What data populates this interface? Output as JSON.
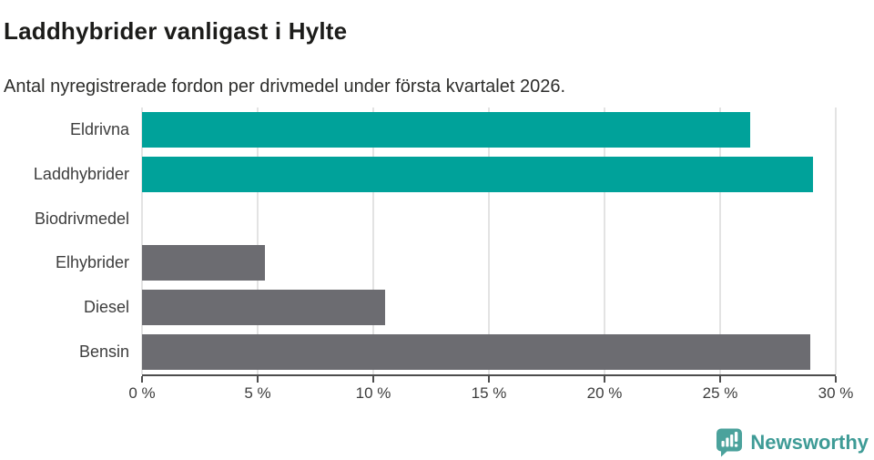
{
  "header": {
    "title": "Laddhybrider vanligast i Hylte",
    "subtitle": "Antal nyregistrerade fordon per drivmedel under första kvartalet 2026."
  },
  "chart_data": {
    "type": "bar",
    "orientation": "horizontal",
    "title": "Laddhybrider vanligast i Hylte",
    "subtitle": "Antal nyregistrerade fordon per drivmedel under första kvartalet 2026.",
    "categories": [
      "Eldrivna",
      "Laddhybrider",
      "Biodrivmedel",
      "Elhybrider",
      "Diesel",
      "Bensin"
    ],
    "values": [
      26.3,
      29,
      0,
      5.3,
      10.5,
      28.9
    ],
    "unit": "%",
    "bar_colors": [
      "#00a29a",
      "#00a29a",
      "#6c6c71",
      "#6c6c71",
      "#6c6c71",
      "#6c6c71"
    ],
    "xlabel": "",
    "ylabel": "",
    "xlim": [
      0,
      30
    ],
    "xticks": [
      0,
      5,
      10,
      15,
      20,
      25,
      30
    ],
    "xtick_suffix": " %",
    "grid": true,
    "legend": "none"
  },
  "colors": {
    "highlight": "#00a29a",
    "muted": "#6c6c71",
    "gridline": "#e3e3e3",
    "axis": "#4d4d4d",
    "text": "#3d3d3d",
    "brand": "#3e9b96"
  },
  "footer": {
    "brand": "Newsworthy",
    "logo_icon": "bar-chart-speech-bubble"
  }
}
